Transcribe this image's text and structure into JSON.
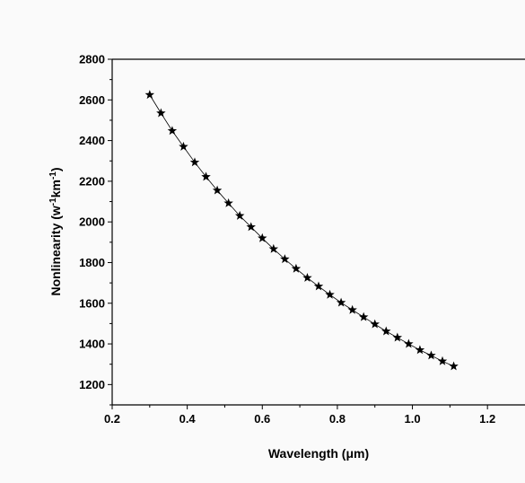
{
  "chart_data": {
    "type": "line",
    "title": "",
    "xlabel": "Wavelength (μm)",
    "ylabel_main": "Nonlinearity (w",
    "ylabel_sup1": "-1",
    "ylabel_mid": "km",
    "ylabel_sup2": "-1",
    "ylabel_end": ")",
    "xlim": [
      0.2,
      1.3
    ],
    "ylim": [
      1100,
      2800
    ],
    "xticks": [
      0.2,
      0.4,
      0.6,
      0.8,
      1.0,
      1.2
    ],
    "xtick_labels": [
      "0.2",
      "0.4",
      "0.6",
      "0.8",
      "1.0",
      "1.2"
    ],
    "yticks": [
      1200,
      1400,
      1600,
      1800,
      2000,
      2200,
      2400,
      2600,
      2800
    ],
    "ytick_labels": [
      "1200",
      "1400",
      "1600",
      "1800",
      "2000",
      "2200",
      "2400",
      "2600",
      "2800"
    ],
    "grid": false,
    "marker": "star",
    "series": [
      {
        "x": [
          0.3,
          0.33,
          0.36,
          0.39,
          0.42,
          0.45,
          0.48,
          0.51,
          0.54,
          0.57,
          0.6,
          0.63,
          0.66,
          0.69,
          0.72,
          0.75,
          0.78,
          0.81,
          0.84,
          0.87,
          0.9,
          0.93,
          0.96,
          0.99,
          1.02,
          1.05,
          1.08,
          1.11
        ],
        "y": [
          2625,
          2535,
          2448,
          2370,
          2293,
          2222,
          2155,
          2092,
          2030,
          1975,
          1920,
          1867,
          1817,
          1770,
          1725,
          1683,
          1642,
          1603,
          1567,
          1532,
          1497,
          1462,
          1431,
          1400,
          1370,
          1343,
          1315,
          1290
        ]
      }
    ],
    "colors": {
      "line": "#000000",
      "marker": "#000000",
      "background": "#fafafa"
    }
  }
}
